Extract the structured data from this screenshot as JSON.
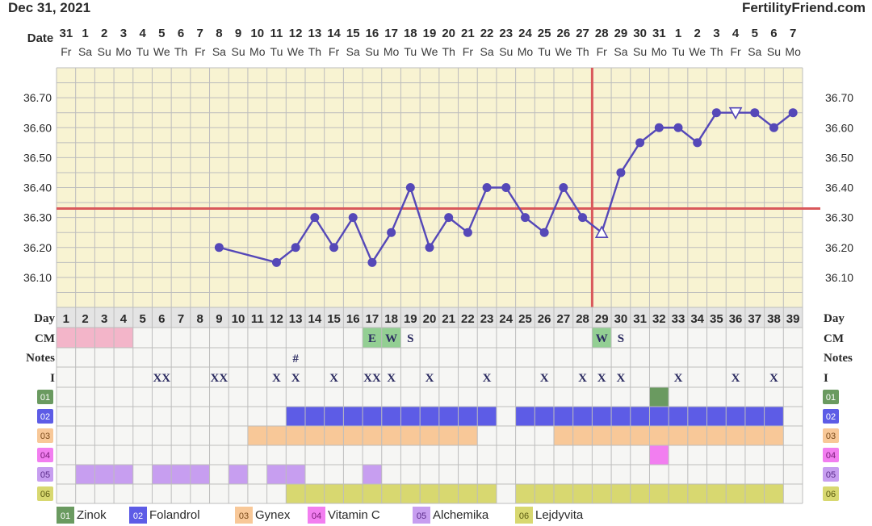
{
  "header": {
    "date": "Dec 31, 2021",
    "site": "FertilityFriend.com"
  },
  "labels": {
    "date": "Date",
    "day": "Day",
    "cm": "CM",
    "notes": "Notes",
    "intercourse": "I"
  },
  "chart_data": {
    "type": "line",
    "ylim": [
      36.0,
      36.8
    ],
    "y_ticks": [
      "36.70",
      "36.60",
      "36.50",
      "36.40",
      "36.30",
      "36.20",
      "36.10"
    ],
    "y_tick_values": [
      36.7,
      36.6,
      36.5,
      36.4,
      36.3,
      36.2,
      36.1
    ],
    "dates": [
      "31",
      "1",
      "2",
      "3",
      "4",
      "5",
      "6",
      "7",
      "8",
      "9",
      "10",
      "11",
      "12",
      "13",
      "14",
      "15",
      "16",
      "17",
      "18",
      "19",
      "20",
      "21",
      "22",
      "23",
      "24",
      "25",
      "26",
      "27",
      "28",
      "29",
      "30",
      "31",
      "1",
      "2",
      "3",
      "4",
      "5",
      "6",
      "7"
    ],
    "weekdays": [
      "Fr",
      "Sa",
      "Su",
      "Mo",
      "Tu",
      "We",
      "Th",
      "Fr",
      "Sa",
      "Su",
      "Mo",
      "Tu",
      "We",
      "Th",
      "Fr",
      "Sa",
      "Su",
      "Mo",
      "Tu",
      "We",
      "Th",
      "Fr",
      "Sa",
      "Su",
      "Mo",
      "Tu",
      "We",
      "Th",
      "Fr",
      "Sa",
      "Su",
      "Mo",
      "Tu",
      "We",
      "Th",
      "Fr",
      "Sa",
      "Su",
      "Mo"
    ],
    "cycle_days": [
      "1",
      "2",
      "3",
      "4",
      "5",
      "6",
      "7",
      "8",
      "9",
      "10",
      "11",
      "12",
      "13",
      "14",
      "15",
      "16",
      "17",
      "18",
      "19",
      "20",
      "21",
      "22",
      "23",
      "24",
      "25",
      "26",
      "27",
      "28",
      "29",
      "30",
      "31",
      "32",
      "33",
      "34",
      "35",
      "36",
      "37",
      "38",
      "39"
    ],
    "temps": [
      null,
      null,
      null,
      null,
      null,
      null,
      null,
      null,
      36.2,
      null,
      null,
      36.15,
      36.2,
      36.3,
      36.2,
      36.3,
      36.15,
      36.25,
      36.4,
      36.2,
      36.3,
      36.25,
      36.4,
      36.4,
      36.3,
      36.25,
      36.4,
      36.3,
      36.25,
      36.45,
      36.55,
      36.6,
      36.6,
      36.55,
      36.65,
      36.65,
      36.65,
      36.6,
      36.65
    ],
    "point_markers": {
      "29": "triangle-up",
      "36": "triangle-down"
    },
    "dashed_segment": [
      8,
      11
    ],
    "coverline": 36.33,
    "ovulation_day": 29,
    "cm": {
      "17": "E",
      "18": "W",
      "19": "S",
      "29": "W",
      "30": "S"
    },
    "cm_highlight": [
      17,
      18,
      29
    ],
    "notes": {
      "13": "#"
    },
    "intercourse": {
      "6": "XX",
      "9": "XX",
      "12": "X",
      "13": "X",
      "15": "X",
      "17": "XX",
      "18": "X",
      "20": "X",
      "23": "X",
      "26": "X",
      "28": "X",
      "29": "X",
      "30": "X",
      "33": "X",
      "36": "X",
      "38": "X"
    },
    "period_days": [
      1,
      2,
      3,
      4
    ]
  },
  "supplements": [
    {
      "code": "01",
      "name": "Zinok",
      "color": "#6a9a60",
      "label_color": "#ffffff",
      "days": [
        32
      ]
    },
    {
      "code": "02",
      "name": "Folandrol",
      "color": "#5d5ce6",
      "label_color": "#ffffff",
      "days": [
        13,
        14,
        15,
        16,
        17,
        18,
        19,
        20,
        21,
        22,
        23,
        25,
        26,
        27,
        28,
        29,
        30,
        31,
        32,
        33,
        34,
        35,
        36,
        37,
        38
      ]
    },
    {
      "code": "03",
      "name": "Gynex",
      "color": "#f8c898",
      "label_color": "#7a4a1a",
      "days": [
        11,
        12,
        13,
        14,
        15,
        16,
        17,
        18,
        19,
        20,
        21,
        22,
        27,
        28,
        29,
        30,
        31,
        32,
        33,
        34,
        35,
        36,
        37,
        38
      ]
    },
    {
      "code": "04",
      "name": "Vitamin C",
      "color": "#f27ef0",
      "label_color": "#7a1a78",
      "days": [
        32
      ]
    },
    {
      "code": "05",
      "name": "Alchemika",
      "color": "#c79ef0",
      "label_color": "#5a2a8a",
      "days": [
        2,
        3,
        4,
        6,
        7,
        8,
        10,
        12,
        13,
        17
      ]
    },
    {
      "code": "06",
      "name": "Lejdyvita",
      "color": "#d8d870",
      "label_color": "#5a5a10",
      "days": [
        13,
        14,
        15,
        16,
        17,
        18,
        19,
        20,
        21,
        22,
        23,
        25,
        26,
        27,
        28,
        29,
        30,
        31,
        32,
        33,
        34,
        35,
        36,
        37,
        38
      ]
    }
  ],
  "colors": {
    "plot_bg": "#f8f3d2",
    "grid": "#bdbdbd",
    "line": "#5548b8",
    "coverline": "#d9585b",
    "period": "#f3b5c9",
    "cm_highlight": "#93cf93",
    "table_bg": "#f6f6f4",
    "day_row_bg": "#e4e4e4"
  }
}
